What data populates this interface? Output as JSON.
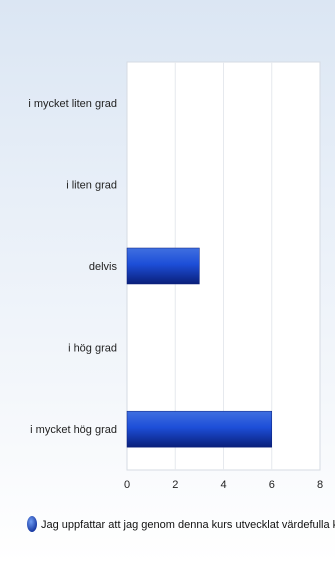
{
  "chart_data": {
    "type": "bar",
    "orientation": "horizontal",
    "categories": [
      "i mycket liten grad",
      "i liten grad",
      "delvis",
      "i hög grad",
      "i mycket hög grad"
    ],
    "series": [
      {
        "name": "Jag uppfattar att jag genom denna kurs utvecklat värdefulla kunskaper",
        "values": [
          0,
          0,
          3,
          0,
          6
        ],
        "color": "#1d4ed8"
      }
    ],
    "xlim": [
      0,
      8
    ],
    "xticks": [
      0,
      2,
      4,
      6,
      8
    ],
    "grid": true,
    "legend_position": "bottom"
  }
}
